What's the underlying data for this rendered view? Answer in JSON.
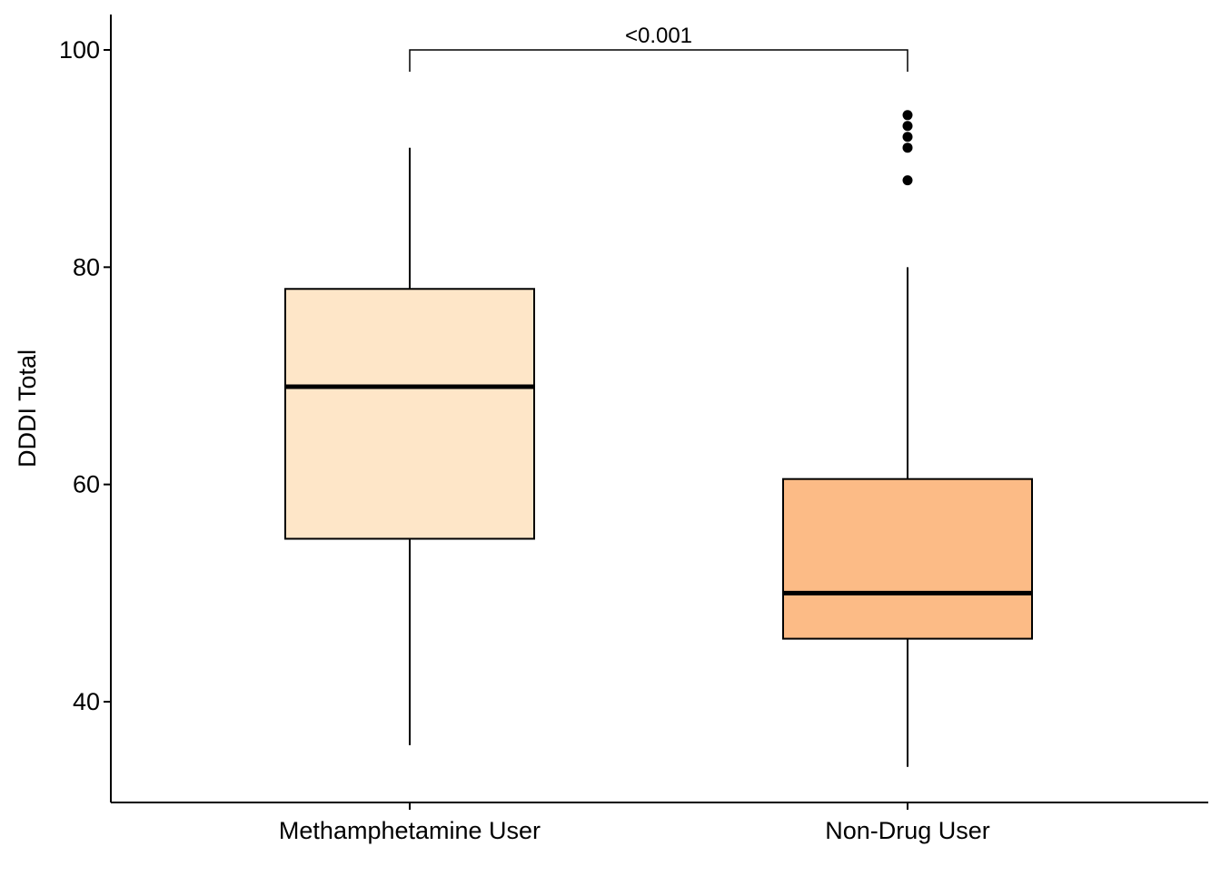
{
  "chart_data": {
    "type": "box",
    "title": "",
    "xlabel": "",
    "ylabel": "DDDI Total",
    "ylim": [
      31,
      103.5
    ],
    "yticks": [
      40,
      60,
      80,
      100
    ],
    "grid": false,
    "legend": "none",
    "categories": [
      "Methamphetamine User",
      "Non-Drug User"
    ],
    "boxes": [
      {
        "category": "Methamphetamine User",
        "fill": "#FEE6C8",
        "whisker_low": 36,
        "q1": 55,
        "median": 69,
        "q3": 78,
        "whisker_high": 91,
        "outliers": []
      },
      {
        "category": "Non-Drug User",
        "fill": "#FCBB86",
        "whisker_low": 34,
        "q1": 45.8,
        "median": 50,
        "q3": 60.5,
        "whisker_high": 80,
        "outliers": [
          88,
          91,
          92,
          93,
          94
        ]
      }
    ],
    "annotations": [
      {
        "type": "significance-bracket",
        "from": "Methamphetamine User",
        "to": "Non-Drug User",
        "y": 100,
        "label": "<0.001"
      }
    ]
  }
}
